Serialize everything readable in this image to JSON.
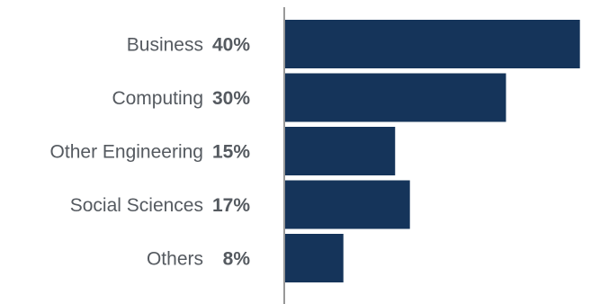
{
  "chart_data": {
    "type": "bar",
    "orientation": "horizontal",
    "categories": [
      "Business",
      "Computing",
      "Other Engineering",
      "Social Sciences",
      "Others"
    ],
    "values": [
      40,
      30,
      15,
      17,
      8
    ],
    "value_labels": [
      "40%",
      "30%",
      "15%",
      "17%",
      "8%"
    ],
    "bar_color": "#15345a",
    "axis_color": "#555555",
    "label_color": "#555a60",
    "xlim": [
      0,
      41.5
    ],
    "grid": false,
    "legend": "none"
  }
}
